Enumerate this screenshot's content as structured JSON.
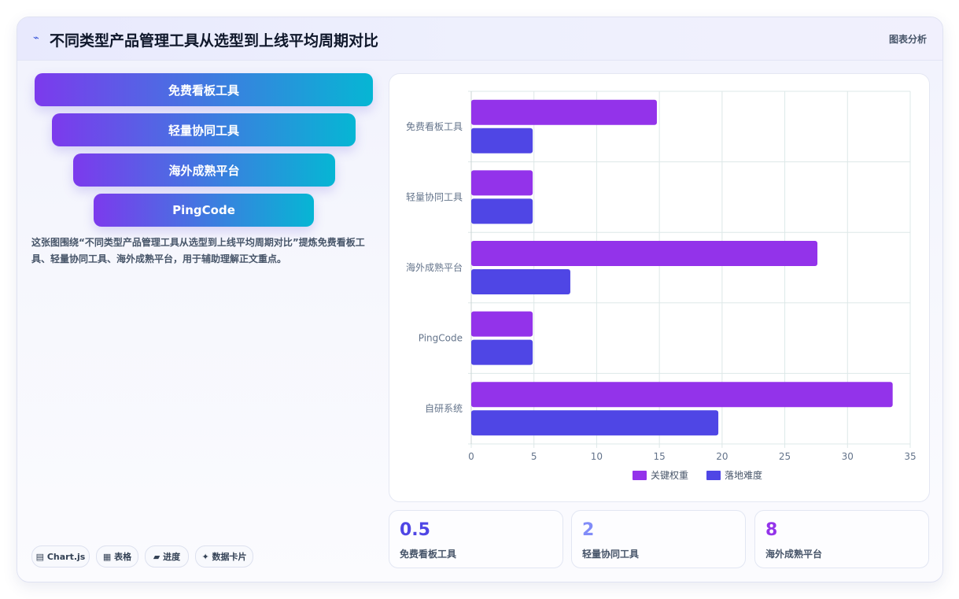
{
  "header": {
    "icon": "chart-line-icon",
    "title": "不同类型产品管理工具从选型到上线平均周期对比",
    "link_label": "图表分析"
  },
  "funnel": [
    {
      "label": "免费看板工具"
    },
    {
      "label": "轻量协同工具"
    },
    {
      "label": "海外成熟平台"
    },
    {
      "label": "PingCode"
    }
  ],
  "description": "这张图围绕“不同类型产品管理工具从选型到上线平均周期对比”提炼免费看板工具、轻量协同工具、海外成熟平台，用于辅助理解正文重点。",
  "chips": [
    {
      "icon": "chart-icon",
      "label": "▤ Chart.js"
    },
    {
      "icon": "table-icon",
      "label": "▦ 表格"
    },
    {
      "icon": "progress-icon",
      "label": "▰ 进度"
    },
    {
      "icon": "card-icon",
      "label": "✦ 数据卡片"
    }
  ],
  "kpis": [
    {
      "value": "0.5",
      "label": "免费看板工具",
      "color": "#4f46e5"
    },
    {
      "value": "2",
      "label": "轻量协同工具",
      "color": "#818cf8"
    },
    {
      "value": "8",
      "label": "海外成熟平台",
      "color": "#9333ea"
    }
  ],
  "chart_data": {
    "type": "bar",
    "orientation": "horizontal",
    "categories": [
      "免费看板工具",
      "轻量协同工具",
      "海外成熟平台",
      "PingCode",
      "自研系统"
    ],
    "series": [
      {
        "name": "关键权重",
        "values": [
          14.8,
          4.9,
          27.6,
          4.9,
          33.6
        ],
        "color": "#9333ea"
      },
      {
        "name": "落地难度",
        "values": [
          4.9,
          4.9,
          7.9,
          4.9,
          19.7
        ],
        "color": "#4f46e5"
      }
    ],
    "xlim": [
      0,
      35
    ],
    "xticks": [
      0,
      5,
      10,
      15,
      20,
      25,
      30,
      35
    ],
    "grid": true,
    "legend_position": "bottom"
  }
}
